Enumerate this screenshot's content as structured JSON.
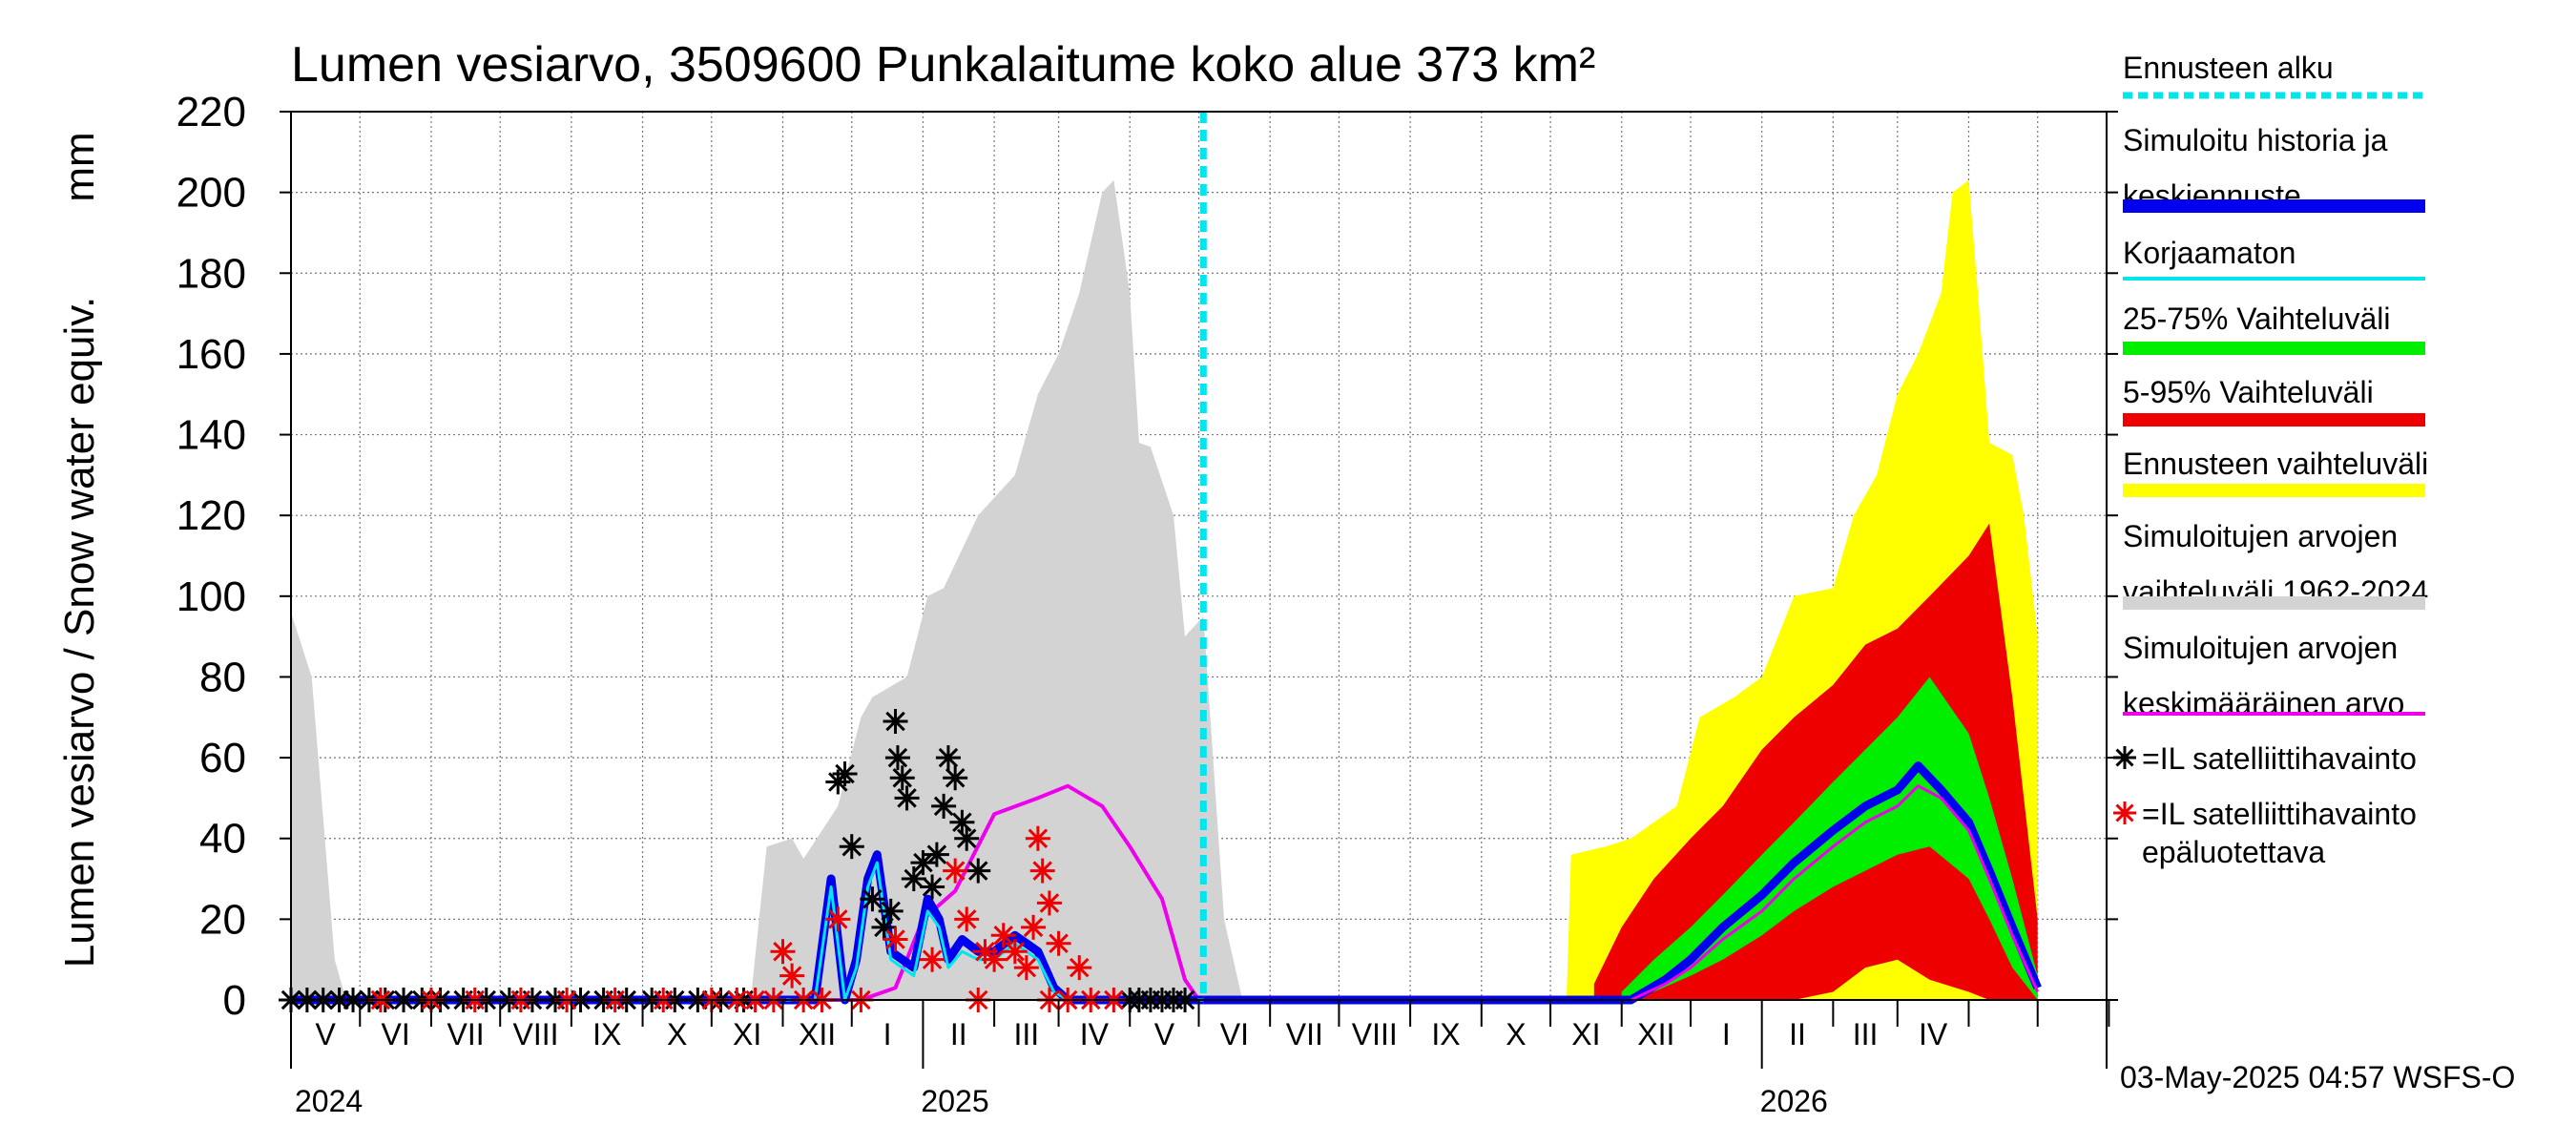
{
  "chart_data": {
    "type": "area",
    "title": "Lumen vesiarvo, 3509600 Punkalaitume koko alue 373 km²",
    "ylabel": "Lumen vesiarvo / Snow water equiv.",
    "yunit": "mm",
    "ylim": [
      0,
      220
    ],
    "yticks": [
      "0",
      "20",
      "40",
      "60",
      "80",
      "100",
      "120",
      "140",
      "160",
      "180",
      "200",
      "220"
    ],
    "x_range": [
      "2024-04-01",
      "2026-05-31"
    ],
    "forecast_start": "2025-05-03",
    "grid": true,
    "legend_position": "right",
    "months": [
      "V",
      "VI",
      "VII",
      "VIII",
      "IX",
      "X",
      "XI",
      "XII",
      "I",
      "II",
      "III",
      "IV",
      "V",
      "VI",
      "VII",
      "VIII",
      "IX",
      "X",
      "XI",
      "XII",
      "I",
      "II",
      "III",
      "IV"
    ],
    "years": [
      "2024",
      "2025",
      "2026"
    ],
    "legend": [
      {
        "label": "Ennusteen alku",
        "color": "#00e5ee",
        "style": "dashed"
      },
      {
        "label": "Simuloitu historia ja keskiennuste",
        "color": "#0000ee",
        "style": "thick"
      },
      {
        "label": "Korjaamaton",
        "color": "#00e5ee",
        "style": "line"
      },
      {
        "label": "25-75% Vaihteluväli",
        "color": "#00ee00",
        "style": "thick"
      },
      {
        "label": "5-95% Vaihteluväli",
        "color": "#ee0000",
        "style": "thick"
      },
      {
        "label": "Ennusteen vaihteluväli",
        "color": "#ffff00",
        "style": "thick"
      },
      {
        "label": "Simuloitujen arvojen vaihteluväli 1962-2024",
        "color": "#d3d3d3",
        "style": "thick"
      },
      {
        "label": "Simuloitujen arvojen keskimääräinen arvo",
        "color": "#ee00ee",
        "style": "line"
      },
      {
        "label": "=IL satelliittihavainto",
        "color": "#000000",
        "style": "star"
      },
      {
        "label": "=IL satelliittihavainto epäluotettava",
        "color": "#ee0000",
        "style": "star"
      }
    ],
    "series": [
      {
        "name": "Simuloitujen arvojen vaihteluväli 1962-2024",
        "kind": "band",
        "color": "#d3d3d3",
        "x": [
          "2024-04-01",
          "2024-04-10",
          "2024-04-20",
          "2024-04-25",
          "2024-10-18",
          "2024-10-25",
          "2024-11-05",
          "2024-11-10",
          "2024-11-25",
          "2024-12-05",
          "2024-12-10",
          "2024-12-25",
          "2025-01-03",
          "2025-01-10",
          "2025-01-25",
          "2025-02-10",
          "2025-02-20",
          "2025-03-01",
          "2025-03-10",
          "2025-03-20",
          "2025-03-25",
          "2025-04-01",
          "2025-04-05",
          "2025-04-10",
          "2025-04-20",
          "2025-04-25",
          "2025-05-03",
          "2025-05-12",
          "2025-05-20"
        ],
        "low": [
          0,
          0,
          0,
          0,
          0,
          0,
          0,
          0,
          0,
          0,
          0,
          0,
          0,
          0,
          0,
          0,
          0,
          0,
          0,
          0,
          0,
          0,
          0,
          0,
          0,
          0,
          0,
          0,
          0
        ],
        "high": [
          96,
          80,
          10,
          0,
          0,
          38,
          40,
          35,
          48,
          70,
          75,
          80,
          100,
          102,
          120,
          130,
          150,
          160,
          175,
          200,
          203,
          175,
          138,
          137,
          120,
          90,
          95,
          20,
          0
        ]
      },
      {
        "name": "Simuloitujen arvojen keskimääräinen arvo",
        "kind": "line",
        "color": "#ee00ee",
        "x": [
          "2024-04-01",
          "2024-12-05",
          "2024-12-20",
          "2025-01-01",
          "2025-01-15",
          "2025-02-01",
          "2025-02-20",
          "2025-03-05",
          "2025-03-20",
          "2025-04-01",
          "2025-04-15",
          "2025-04-25",
          "2025-05-01"
        ],
        "y": [
          0,
          0,
          3,
          20,
          27,
          46,
          50,
          53,
          48,
          38,
          25,
          5,
          0
        ]
      },
      {
        "name": "Simuloitu historia ja keskiennuste",
        "kind": "line",
        "color": "#0000ee",
        "x": [
          "2024-04-01",
          "2024-11-15",
          "2024-11-22",
          "2024-11-28",
          "2024-12-03",
          "2024-12-08",
          "2024-12-12",
          "2024-12-18",
          "2024-12-28",
          "2025-01-03",
          "2025-01-08",
          "2025-01-12",
          "2025-01-18",
          "2025-01-25",
          "2025-02-01",
          "2025-02-10",
          "2025-02-20",
          "2025-02-27",
          "2025-03-05",
          "2025-05-03"
        ],
        "y": [
          0,
          0,
          30,
          0,
          10,
          30,
          36,
          12,
          8,
          25,
          20,
          10,
          15,
          12,
          12,
          16,
          12,
          3,
          0,
          0
        ]
      },
      {
        "name": "Korjaamaton",
        "kind": "line",
        "color": "#00e5ee",
        "x": [
          "2024-04-01",
          "2024-11-15",
          "2024-11-22",
          "2024-11-28",
          "2024-12-03",
          "2024-12-08",
          "2024-12-12",
          "2024-12-18",
          "2024-12-28",
          "2025-01-03",
          "2025-01-08",
          "2025-01-12",
          "2025-01-18",
          "2025-01-25",
          "2025-02-01",
          "2025-02-10",
          "2025-02-20",
          "2025-02-27",
          "2025-03-05",
          "2025-05-03"
        ],
        "y": [
          0,
          0,
          28,
          0,
          8,
          28,
          34,
          10,
          6,
          22,
          18,
          8,
          12,
          10,
          10,
          14,
          10,
          2,
          0,
          0
        ]
      },
      {
        "name": "Ennusteen vaihteluväli",
        "kind": "band",
        "color": "#ffff00",
        "x": [
          "2025-10-08",
          "2025-10-10",
          "2025-10-25",
          "2025-11-05",
          "2025-11-25",
          "2025-12-05",
          "2025-12-20",
          "2026-01-01",
          "2026-01-15",
          "2026-02-01",
          "2026-02-10",
          "2026-02-20",
          "2026-03-01",
          "2026-03-10",
          "2026-03-20",
          "2026-03-25",
          "2026-04-01",
          "2026-04-05",
          "2026-04-10",
          "2026-04-20",
          "2026-04-25",
          "2026-05-01"
        ],
        "low": [
          0,
          0,
          0,
          0,
          0,
          0,
          0,
          0,
          0,
          0,
          0,
          0,
          0,
          0,
          0,
          0,
          0,
          0,
          0,
          0,
          0,
          0
        ],
        "high": [
          0,
          36,
          38,
          40,
          48,
          70,
          75,
          80,
          100,
          102,
          120,
          130,
          150,
          160,
          175,
          200,
          203,
          175,
          138,
          135,
          120,
          90
        ]
      },
      {
        "name": "5-95% Vaihteluväli",
        "kind": "band",
        "color": "#ee0000",
        "x": [
          "2025-10-20",
          "2025-11-01",
          "2025-11-15",
          "2025-12-01",
          "2025-12-15",
          "2026-01-01",
          "2026-01-15",
          "2026-02-01",
          "2026-02-15",
          "2026-03-01",
          "2026-03-15",
          "2026-04-01",
          "2026-04-10",
          "2026-04-20",
          "2026-05-01"
        ],
        "low": [
          0,
          0,
          0,
          0,
          0,
          0,
          0,
          2,
          8,
          10,
          5,
          2,
          0,
          0,
          0
        ],
        "high": [
          4,
          18,
          30,
          40,
          48,
          62,
          70,
          78,
          88,
          92,
          100,
          110,
          118,
          75,
          20
        ]
      },
      {
        "name": "25-75% Vaihteluväli",
        "kind": "band",
        "color": "#00ee00",
        "x": [
          "2025-11-01",
          "2025-11-15",
          "2025-12-01",
          "2025-12-15",
          "2026-01-01",
          "2026-01-15",
          "2026-02-01",
          "2026-02-15",
          "2026-03-01",
          "2026-03-15",
          "2026-04-01",
          "2026-04-10",
          "2026-04-20",
          "2026-05-01"
        ],
        "low": [
          0,
          2,
          6,
          10,
          16,
          22,
          28,
          32,
          36,
          38,
          30,
          20,
          8,
          0
        ],
        "high": [
          2,
          10,
          18,
          26,
          36,
          44,
          54,
          62,
          70,
          80,
          66,
          50,
          30,
          6
        ]
      },
      {
        "name": "Keskiennuste",
        "kind": "line",
        "color": "#0000ee",
        "x": [
          "2025-05-03",
          "2025-11-05",
          "2025-11-20",
          "2025-12-01",
          "2025-12-15",
          "2026-01-01",
          "2026-01-15",
          "2026-02-01",
          "2026-02-15",
          "2026-03-01",
          "2026-03-10",
          "2026-03-20",
          "2026-04-01",
          "2026-04-10",
          "2026-04-20",
          "2026-05-01"
        ],
        "y": [
          0,
          0,
          5,
          10,
          18,
          26,
          34,
          42,
          48,
          52,
          58,
          52,
          44,
          32,
          18,
          3
        ]
      },
      {
        "name": "Keskimääräinen ennuste",
        "kind": "line",
        "color": "#ee00ee",
        "x": [
          "2025-11-05",
          "2025-11-20",
          "2025-12-01",
          "2025-12-15",
          "2026-01-01",
          "2026-01-15",
          "2026-02-01",
          "2026-02-15",
          "2026-03-01",
          "2026-03-10",
          "2026-03-20",
          "2026-04-01",
          "2026-04-10",
          "2026-04-20",
          "2026-05-01"
        ],
        "y": [
          0,
          4,
          8,
          15,
          22,
          30,
          38,
          44,
          48,
          53,
          50,
          42,
          30,
          16,
          2
        ]
      },
      {
        "name": "=IL satelliittihavainto",
        "kind": "scatter",
        "color": "#000000",
        "x": [
          "2024-11-25",
          "2024-11-28",
          "2024-12-01",
          "2024-12-10",
          "2024-12-15",
          "2024-12-18",
          "2024-12-20",
          "2024-12-21",
          "2024-12-23",
          "2024-12-25",
          "2024-12-28",
          "2025-01-01",
          "2025-01-05",
          "2025-01-07",
          "2025-01-10",
          "2025-01-12",
          "2025-01-15",
          "2025-01-18",
          "2025-01-20",
          "2025-01-25"
        ],
        "y": [
          54,
          56,
          38,
          25,
          18,
          22,
          69,
          60,
          55,
          50,
          30,
          34,
          28,
          36,
          48,
          60,
          55,
          44,
          40,
          32
        ]
      },
      {
        "name": "=IL satelliittihavainto epäluotettava",
        "kind": "scatter",
        "color": "#ee0000",
        "x": [
          "2024-11-01",
          "2024-11-05",
          "2024-11-25",
          "2024-12-20",
          "2025-01-05",
          "2025-01-15",
          "2025-01-20",
          "2025-01-28",
          "2025-02-01",
          "2025-02-05",
          "2025-02-10",
          "2025-02-15",
          "2025-02-18",
          "2025-02-20",
          "2025-02-22",
          "2025-02-25",
          "2025-03-01",
          "2025-03-10"
        ],
        "y": [
          12,
          6,
          20,
          15,
          10,
          32,
          20,
          12,
          10,
          16,
          12,
          8,
          18,
          40,
          32,
          24,
          14,
          8
        ]
      },
      {
        "name": "Zero-level observations",
        "kind": "scatter-zero",
        "color": "#000000",
        "x": [
          "2024-04-01",
          "2024-04-08",
          "2024-04-15",
          "2024-04-22",
          "2024-04-28",
          "2024-05-05",
          "2024-05-12",
          "2024-05-20",
          "2024-05-28",
          "2024-06-05",
          "2024-06-15",
          "2024-06-25",
          "2024-07-05",
          "2024-07-15",
          "2024-07-25",
          "2024-08-05",
          "2024-08-15",
          "2024-08-25",
          "2024-09-05",
          "2024-09-15",
          "2024-09-25",
          "2024-10-05",
          "2024-10-15",
          "2025-04-01",
          "2025-04-05",
          "2025-04-10",
          "2025-04-15",
          "2025-04-20",
          "2025-04-25"
        ],
        "y": [
          0,
          0,
          0,
          0,
          0,
          0,
          0,
          0,
          0,
          0,
          0,
          0,
          0,
          0,
          0,
          0,
          0,
          0,
          0,
          0,
          0,
          0,
          0,
          0,
          0,
          0,
          0,
          0,
          0
        ]
      },
      {
        "name": "Zero-level unreliable observations",
        "kind": "scatter-zero",
        "color": "#ee0000",
        "x": [
          "2024-05-10",
          "2024-06-01",
          "2024-06-20",
          "2024-07-10",
          "2024-07-30",
          "2024-08-20",
          "2024-09-10",
          "2024-10-01",
          "2024-10-12",
          "2024-10-20",
          "2024-10-28",
          "2024-11-10",
          "2024-11-18",
          "2024-12-05",
          "2025-01-25",
          "2025-02-25",
          "2025-03-05",
          "2025-03-15",
          "2025-03-25"
        ],
        "y": [
          0,
          0,
          0,
          0,
          0,
          0,
          0,
          0,
          0,
          0,
          0,
          0,
          0,
          0,
          0,
          0,
          0,
          0,
          0
        ]
      }
    ]
  },
  "timestamp": "03-May-2025 04:57 WSFS-O"
}
